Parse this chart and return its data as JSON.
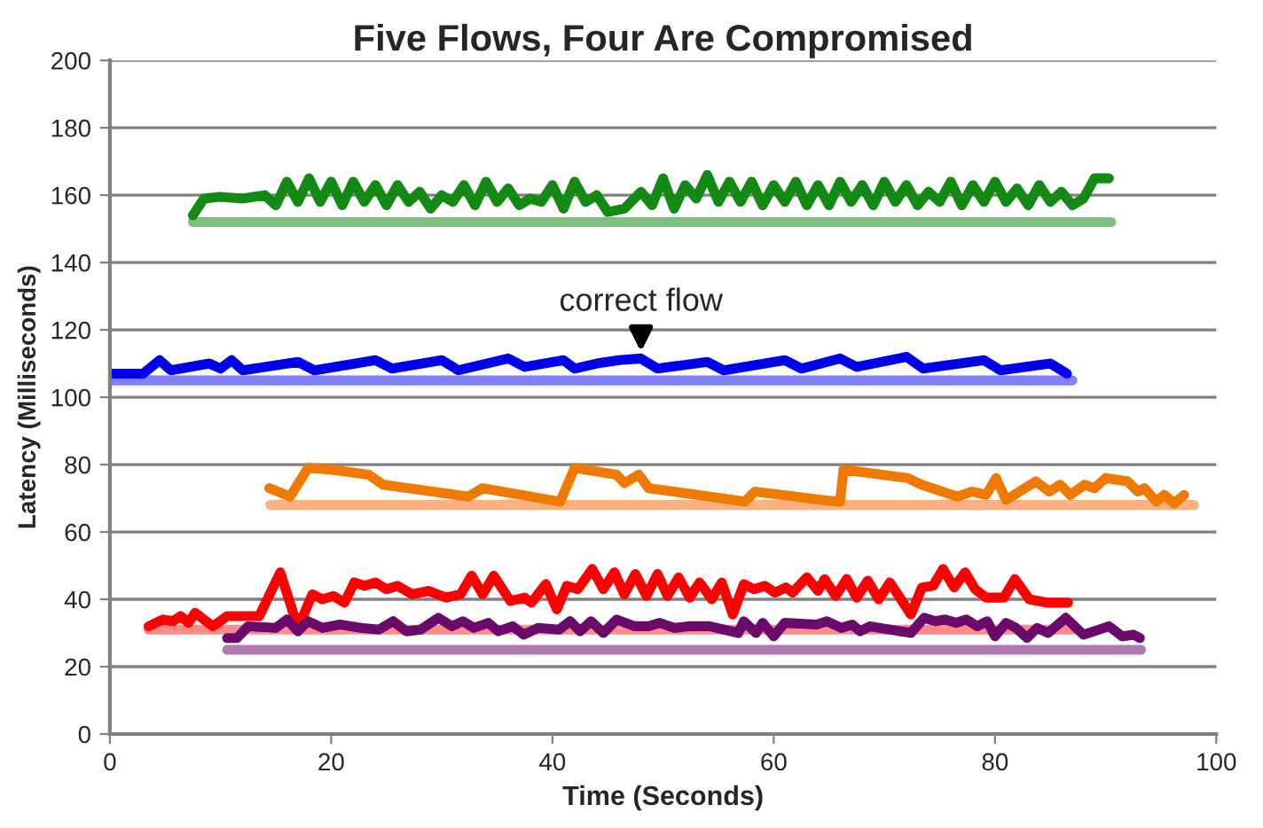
{
  "chart_data": {
    "type": "line",
    "title": "Five Flows, Four Are Compromised",
    "xlabel": "Time (Seconds)",
    "ylabel": "Latency (Milliseconds)",
    "xlim": [
      0,
      100
    ],
    "xticks": [
      0,
      20,
      40,
      60,
      80,
      100
    ],
    "ylim": [
      0,
      200
    ],
    "yticks": [
      0,
      20,
      40,
      60,
      80,
      100,
      120,
      140,
      160,
      180,
      200
    ],
    "grid": "y",
    "legend": false,
    "marker": "none",
    "line_style": "solid",
    "annotations": [
      {
        "text": "correct flow",
        "x": 48,
        "y": 112
      }
    ],
    "series": [
      {
        "color": "#7cc17c",
        "x": [
          7.5,
          90.5
        ],
        "values": [
          152,
          152
        ]
      },
      {
        "color": "#138a13",
        "x": [
          7.5,
          8.5,
          10,
          12,
          14,
          15,
          16,
          17,
          18,
          19,
          20,
          21,
          22,
          23,
          24,
          25,
          26,
          27,
          28,
          29,
          30,
          31,
          32,
          33,
          34,
          35,
          36,
          37,
          38,
          39,
          40,
          41,
          42,
          43,
          44,
          45,
          46.5,
          48,
          49,
          50,
          51,
          52,
          53,
          54,
          55,
          56,
          57,
          58,
          59,
          60,
          61,
          62,
          63,
          64,
          65,
          66,
          67,
          68,
          69,
          70,
          71,
          72,
          73,
          74,
          75,
          76,
          77,
          78,
          79,
          80,
          81,
          82,
          83,
          84,
          85,
          86,
          87,
          88,
          89,
          90.3
        ],
        "values": [
          154,
          159,
          159.5,
          159,
          160,
          157,
          164,
          158,
          165,
          158,
          164,
          157,
          164,
          158,
          163,
          157,
          163,
          158,
          161,
          156,
          160,
          158,
          163,
          157,
          164,
          158,
          162,
          157,
          159,
          158,
          163,
          156,
          164,
          158,
          160,
          155,
          156,
          161,
          157,
          165,
          156,
          163,
          159,
          166,
          158,
          164,
          158,
          164,
          157,
          163,
          158,
          164,
          157,
          163,
          157,
          164,
          158,
          163,
          157,
          164,
          158,
          163,
          157,
          161,
          158,
          164,
          157,
          163,
          158,
          164,
          158,
          162,
          157,
          163,
          158,
          161,
          157,
          159,
          165,
          165
        ]
      },
      {
        "color": "#8080ff",
        "x": [
          0,
          87
        ],
        "values": [
          105,
          105
        ]
      },
      {
        "color": "#0000ee",
        "x": [
          0,
          3,
          4.5,
          5.5,
          9,
          10,
          11,
          12,
          17,
          18.5,
          24,
          25.5,
          30,
          31.5,
          36,
          37.5,
          41,
          42,
          44,
          46,
          48,
          49.5,
          54,
          55.5,
          61,
          62.5,
          66,
          67.5,
          72,
          73.5,
          79,
          80.5,
          85,
          86.5
        ],
        "values": [
          107,
          107,
          111,
          108,
          110,
          108.5,
          111,
          108,
          110.5,
          108,
          111,
          108.5,
          111,
          108,
          111.5,
          109,
          111,
          108.5,
          110,
          111,
          111.5,
          108.5,
          110.5,
          108,
          111,
          108.5,
          111.5,
          109,
          112,
          108.5,
          111,
          108,
          110,
          107
        ]
      },
      {
        "color": "#ffb080",
        "x": [
          14.5,
          98
        ],
        "values": [
          68,
          68
        ]
      },
      {
        "color": "#f07a00",
        "x": [
          14.4,
          16.3,
          17.9,
          20,
          23.4,
          24.7,
          32.4,
          33.7,
          40.7,
          42,
          45.8,
          46.5,
          47.8,
          48.7,
          57.4,
          58.3,
          64.4,
          66,
          66.3,
          72.1,
          73.4,
          76.6,
          77.9,
          79.2,
          80.1,
          81,
          83.7,
          84.9,
          85.9,
          86.8,
          88.1,
          89,
          90,
          92,
          92.9,
          93.5,
          94.6,
          95.3,
          96.2,
          97.1
        ],
        "values": [
          73,
          70.5,
          79,
          78.5,
          77,
          74,
          70.5,
          73,
          69,
          79,
          77,
          74.5,
          77,
          73,
          69,
          72,
          69.5,
          69,
          78.5,
          76,
          74,
          70.5,
          72,
          71,
          76,
          69.5,
          75,
          72,
          74,
          71,
          74,
          73,
          76,
          75,
          72,
          73,
          69,
          71,
          68.5,
          71
        ]
      },
      {
        "color": "#ff8a8a",
        "x": [
          3.5,
          87
        ],
        "values": [
          31,
          31
        ]
      },
      {
        "color": "#b07ab0",
        "x": [
          10.6,
          93.2
        ],
        "values": [
          25,
          25
        ]
      },
      {
        "color": "#ff0000",
        "x": [
          3.5,
          4.8,
          5.7,
          6.4,
          7.1,
          7.7,
          9.3,
          10.6,
          13.5,
          15.4,
          17,
          18.3,
          19.2,
          20.2,
          21.2,
          22.1,
          23,
          24,
          25,
          26,
          27.3,
          28.8,
          30.4,
          31.7,
          32.7,
          33.7,
          34.7,
          36.2,
          37.5,
          38.1,
          39.4,
          40.4,
          41.3,
          42.3,
          43.6,
          44.6,
          45.6,
          46.5,
          47.5,
          48.5,
          49.5,
          50.4,
          51.4,
          52.4,
          53.3,
          54.4,
          55.3,
          56.3,
          57.3,
          58.2,
          59.2,
          60.1,
          61.1,
          61.7,
          63,
          64,
          64.6,
          65.6,
          66.6,
          67.5,
          68.5,
          69.5,
          70.5,
          71.4,
          72.4,
          73.4,
          74.4,
          75.3,
          76.3,
          77.3,
          78.2,
          79.2,
          80.8,
          81.8,
          83.1,
          84.7,
          86.6
        ],
        "values": [
          32,
          34,
          33.5,
          35,
          33,
          36,
          32,
          35,
          35,
          48,
          31.5,
          41.5,
          40,
          41,
          39,
          45,
          44,
          45,
          43,
          44,
          41.5,
          42.5,
          40.5,
          41.5,
          47,
          41.5,
          47,
          39.5,
          40.5,
          39,
          44.5,
          37,
          44,
          43,
          49,
          43,
          48,
          41.5,
          47.5,
          41,
          47.5,
          41,
          46.5,
          40.5,
          45,
          40,
          45,
          35.5,
          44.5,
          43,
          44,
          42,
          43.5,
          42,
          46.5,
          42.5,
          46,
          41,
          46,
          40.5,
          45.5,
          40,
          45,
          40.5,
          35.5,
          43.5,
          44,
          49,
          43.5,
          48,
          43,
          40.5,
          40.5,
          46,
          40,
          39,
          39
        ]
      },
      {
        "color": "#6a0a6a",
        "x": [
          10.6,
          11.5,
          12.5,
          15,
          16,
          17,
          17.9,
          19.2,
          20.8,
          22.7,
          24.3,
          25.6,
          26.8,
          28.1,
          29.7,
          30.9,
          31.9,
          32.9,
          34.2,
          35.1,
          36.4,
          37.4,
          38.7,
          40.6,
          41.6,
          42.5,
          43.5,
          44.6,
          45.8,
          47.4,
          48.7,
          49.7,
          51,
          52.3,
          54.2,
          56.8,
          57.3,
          58.4,
          59,
          60,
          61,
          63.9,
          64.8,
          66.1,
          67.1,
          67.8,
          68.7,
          72.4,
          73.6,
          74.6,
          75.5,
          76.5,
          77.4,
          78.4,
          79.3,
          80,
          81,
          81.9,
          82.9,
          83.8,
          84.8,
          86.4,
          88,
          90.3,
          91.5,
          92.5,
          93.1
        ],
        "values": [
          28.5,
          28.5,
          32,
          31.5,
          34,
          30.5,
          33.5,
          31.5,
          32.5,
          31.5,
          31,
          33.5,
          30.5,
          31,
          34.5,
          32,
          33.5,
          31.5,
          33,
          30.5,
          32,
          29.5,
          31.5,
          31,
          33.5,
          30.5,
          33.5,
          30,
          34,
          32,
          32,
          33,
          31.5,
          32,
          32,
          30,
          33.5,
          30,
          33,
          29,
          33,
          32.5,
          33.5,
          31.5,
          32.5,
          30.5,
          32,
          30,
          34.5,
          33.5,
          34,
          33,
          34,
          32,
          33.5,
          29,
          33,
          31.5,
          28.5,
          31.5,
          30,
          34.5,
          29.5,
          32,
          29,
          29.5,
          28.5
        ]
      }
    ]
  }
}
